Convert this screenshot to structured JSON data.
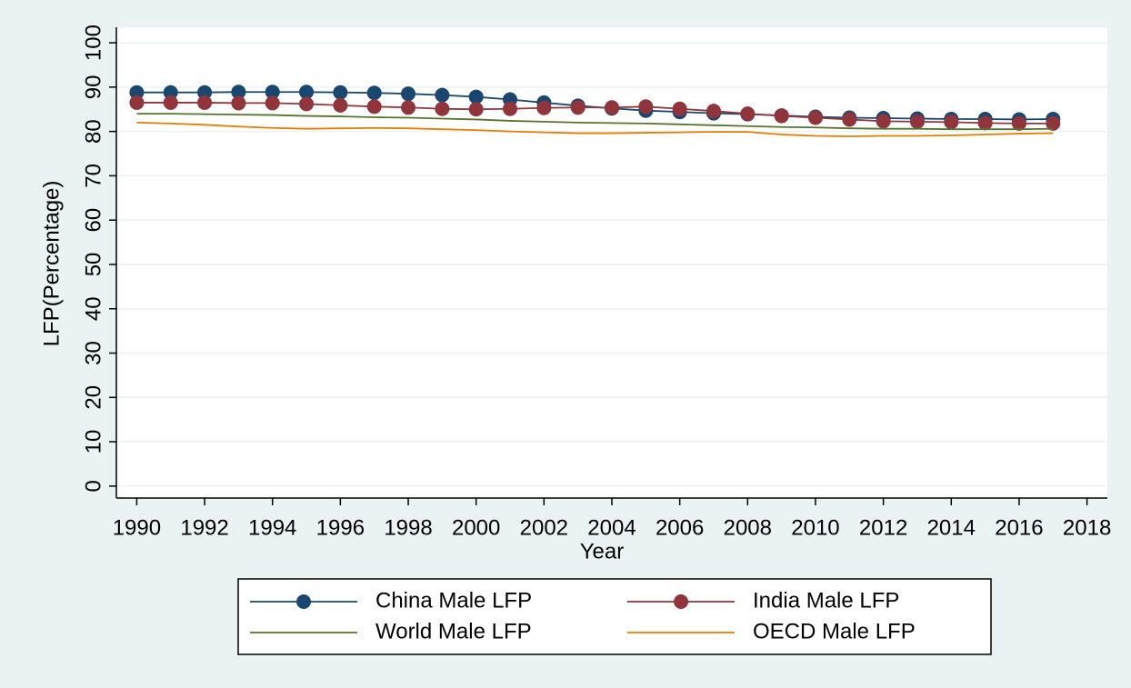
{
  "chart_data": {
    "type": "line",
    "x_label": "Year",
    "y_label": "LFP(Percentage)",
    "x": [
      1990,
      1991,
      1992,
      1993,
      1994,
      1995,
      1996,
      1997,
      1998,
      1999,
      2000,
      2001,
      2002,
      2003,
      2004,
      2005,
      2006,
      2007,
      2008,
      2009,
      2010,
      2011,
      2012,
      2013,
      2014,
      2015,
      2016,
      2017
    ],
    "series": [
      {
        "name": "China Male LFP",
        "color": "#1a476f",
        "markers": true,
        "values": [
          88.8,
          88.8,
          88.8,
          88.9,
          88.9,
          88.9,
          88.8,
          88.7,
          88.5,
          88.2,
          87.8,
          87.2,
          86.5,
          85.8,
          85.2,
          84.7,
          84.4,
          84.1,
          83.9,
          83.6,
          83.3,
          83.1,
          83.0,
          82.9,
          82.8,
          82.8,
          82.7,
          82.8
        ]
      },
      {
        "name": "India Male LFP",
        "color": "#90353b",
        "markers": true,
        "values": [
          86.5,
          86.5,
          86.5,
          86.4,
          86.4,
          86.2,
          85.9,
          85.6,
          85.4,
          85.1,
          85.0,
          85.1,
          85.3,
          85.4,
          85.4,
          85.6,
          85.1,
          84.6,
          84.0,
          83.5,
          83.1,
          82.7,
          82.3,
          82.2,
          82.1,
          81.9,
          81.8,
          81.8
        ]
      },
      {
        "name": "World Male LFP",
        "color": "#55752f",
        "markers": false,
        "values": [
          84.0,
          84.0,
          83.9,
          83.8,
          83.7,
          83.5,
          83.4,
          83.2,
          83.1,
          82.9,
          82.7,
          82.4,
          82.2,
          82.0,
          81.9,
          81.8,
          81.6,
          81.4,
          81.2,
          81.0,
          80.9,
          80.7,
          80.6,
          80.6,
          80.5,
          80.5,
          80.5,
          80.6
        ]
      },
      {
        "name": "OECD Male LFP",
        "color": "#e37e00",
        "markers": false,
        "values": [
          82.0,
          81.8,
          81.5,
          81.1,
          80.8,
          80.6,
          80.7,
          80.8,
          80.7,
          80.5,
          80.3,
          80.0,
          79.8,
          79.6,
          79.6,
          79.7,
          79.8,
          79.9,
          79.9,
          79.3,
          79.0,
          78.9,
          79.0,
          79.0,
          79.1,
          79.3,
          79.5,
          79.6
        ]
      }
    ],
    "xlim": [
      1989.4,
      2018.6
    ],
    "xticks": [
      1990,
      1992,
      1994,
      1996,
      1998,
      2000,
      2002,
      2004,
      2006,
      2008,
      2010,
      2012,
      2014,
      2016,
      2018
    ],
    "ylim": [
      -2.7,
      103.5
    ],
    "yticks": [
      0,
      10,
      20,
      30,
      40,
      50,
      60,
      70,
      80,
      90,
      100
    ],
    "grid": true,
    "legend": "bottom"
  }
}
